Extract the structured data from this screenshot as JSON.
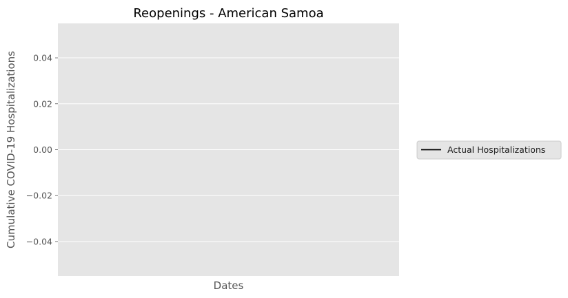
{
  "chart_data": {
    "type": "line",
    "title": "Reopenings - American Samoa",
    "xlabel": "Dates",
    "ylabel": "Cumulative COVID-19 Hospitalizations",
    "ylim": [
      -0.055,
      0.055
    ],
    "yticks": [
      0.04,
      0.02,
      0.0,
      -0.02,
      -0.04
    ],
    "ytick_labels": [
      "0.04",
      "0.02",
      "0.00",
      "−0.02",
      "−0.04"
    ],
    "grid": true,
    "legend_position": "outside-right",
    "series": [
      {
        "name": "Actual Hospitalizations",
        "color": "#000000",
        "x": [],
        "values": []
      }
    ]
  },
  "colors": {
    "plot_background": "#e5e5e5",
    "grid": "#ffffff",
    "legend_background": "#e5e5e5",
    "legend_border": "#cccccc"
  }
}
